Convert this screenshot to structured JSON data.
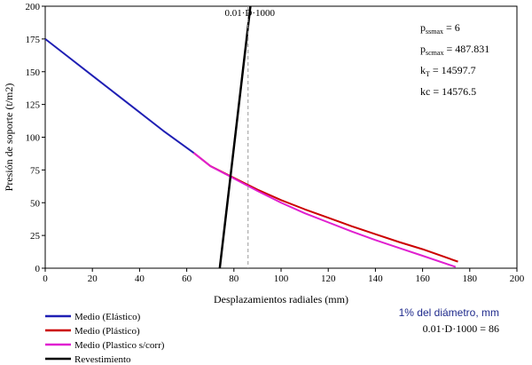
{
  "chart_data": {
    "type": "line",
    "title": "",
    "xlabel": "Desplazamientos radiales (mm)",
    "ylabel": "Presión de soporte (t/m2)",
    "xlim": [
      0,
      200
    ],
    "ylim": [
      0,
      200
    ],
    "x_ticks": [
      0,
      20,
      40,
      60,
      80,
      100,
      120,
      140,
      160,
      180,
      200
    ],
    "y_ticks": [
      0,
      25,
      50,
      75,
      100,
      125,
      150,
      175,
      200
    ],
    "grid": false,
    "legend_position": "bottom-left",
    "series": [
      {
        "name": "Medio (Elástico)",
        "color": "#1f1fb4",
        "points": [
          [
            0,
            175
          ],
          [
            10,
            161
          ],
          [
            20,
            147
          ],
          [
            30,
            133
          ],
          [
            40,
            119
          ],
          [
            50,
            105
          ],
          [
            63,
            88
          ]
        ]
      },
      {
        "name": "Medio (Plástico)",
        "color": "#cc0000",
        "points": [
          [
            63,
            88
          ],
          [
            70,
            78
          ],
          [
            80,
            69
          ],
          [
            90,
            60
          ],
          [
            100,
            52
          ],
          [
            110,
            45
          ],
          [
            120,
            38.5
          ],
          [
            130,
            32
          ],
          [
            140,
            26
          ],
          [
            150,
            20
          ],
          [
            160,
            14.5
          ],
          [
            175,
            5
          ]
        ]
      },
      {
        "name": "Medio (Plastico s/corr)",
        "color": "#e020d0",
        "points": [
          [
            63,
            88
          ],
          [
            70,
            78
          ],
          [
            80,
            68.5
          ],
          [
            90,
            59
          ],
          [
            100,
            50
          ],
          [
            110,
            42
          ],
          [
            120,
            35
          ],
          [
            130,
            28
          ],
          [
            140,
            21.5
          ],
          [
            150,
            15.5
          ],
          [
            160,
            9.5
          ],
          [
            174,
            1
          ]
        ]
      },
      {
        "name": "Revestimiento",
        "color": "#000000",
        "points": [
          [
            74,
            0
          ],
          [
            87,
            200
          ]
        ]
      }
    ],
    "reference_line": {
      "label": "0.01·D·1000",
      "x": 86
    },
    "parameters": [
      {
        "symbol": "p",
        "sub": "ssmax",
        "value": "= 6"
      },
      {
        "symbol": "p",
        "sub": "scmax",
        "value": "= 487.831"
      },
      {
        "symbol": "k",
        "sub": "T",
        "value": "= 14597.7"
      },
      {
        "symbol": "kc",
        "sub": "",
        "value": "= 14576.5"
      }
    ],
    "note": {
      "heading": "1% del diámetro, mm",
      "text": "0.01·D·1000 = 86"
    }
  }
}
